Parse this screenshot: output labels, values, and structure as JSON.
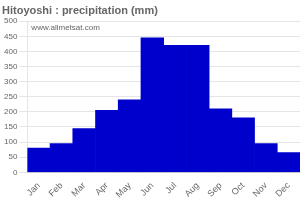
{
  "chart_data": {
    "type": "bar",
    "title": "Hitoyoshi : precipitation (mm)",
    "categories": [
      "Jan",
      "Feb",
      "Mar",
      "Apr",
      "May",
      "Jun",
      "Jul",
      "Aug",
      "Sep",
      "Oct",
      "Nov",
      "Dec"
    ],
    "values": [
      80,
      95,
      145,
      205,
      240,
      445,
      420,
      420,
      210,
      180,
      95,
      65
    ],
    "color": "#0000cc",
    "ylim": [
      0,
      500
    ],
    "yticks": [
      0,
      50,
      100,
      150,
      200,
      250,
      300,
      350,
      400,
      450,
      500
    ],
    "grid": true,
    "annotation": "www.allmetsat.com"
  }
}
